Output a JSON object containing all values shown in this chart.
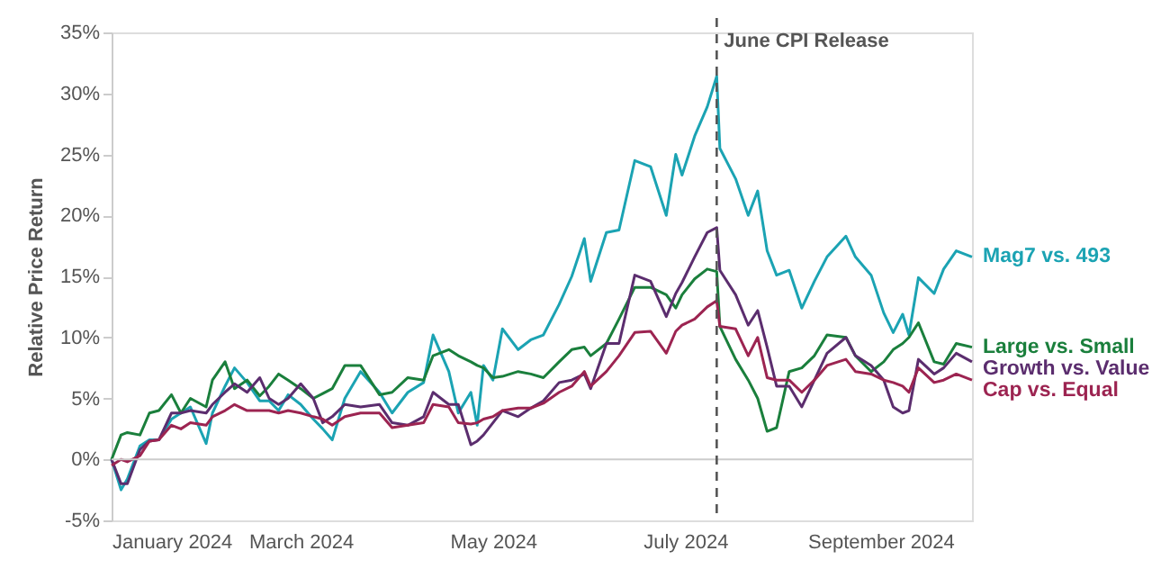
{
  "chart_data": {
    "type": "line",
    "ylabel": "Relative Price Return",
    "x": [
      "2024-01-01",
      "2024-01-04",
      "2024-01-06",
      "2024-01-10",
      "2024-01-13",
      "2024-01-16",
      "2024-01-20",
      "2024-01-23",
      "2024-01-26",
      "2024-01-31",
      "2024-02-02",
      "2024-02-06",
      "2024-02-09",
      "2024-02-13",
      "2024-02-17",
      "2024-02-20",
      "2024-02-23",
      "2024-02-26",
      "2024-03-01",
      "2024-03-05",
      "2024-03-08",
      "2024-03-11",
      "2024-03-15",
      "2024-03-20",
      "2024-03-26",
      "2024-03-30",
      "2024-04-04",
      "2024-04-09",
      "2024-04-12",
      "2024-04-17",
      "2024-04-20",
      "2024-04-24",
      "2024-04-26",
      "2024-04-28",
      "2024-05-01",
      "2024-05-04",
      "2024-05-09",
      "2024-05-13",
      "2024-05-17",
      "2024-05-22",
      "2024-05-26",
      "2024-05-30",
      "2024-06-01",
      "2024-06-06",
      "2024-06-10",
      "2024-06-15",
      "2024-06-20",
      "2024-06-25",
      "2024-06-28",
      "2024-06-30",
      "2024-07-04",
      "2024-07-08",
      "2024-07-11",
      "2024-07-12",
      "2024-07-17",
      "2024-07-21",
      "2024-07-24",
      "2024-07-27",
      "2024-07-30",
      "2024-08-03",
      "2024-08-07",
      "2024-08-11",
      "2024-08-15",
      "2024-08-21",
      "2024-08-24",
      "2024-08-29",
      "2024-09-02",
      "2024-09-05",
      "2024-09-08",
      "2024-09-10",
      "2024-09-13",
      "2024-09-18",
      "2024-09-21",
      "2024-09-25",
      "2024-09-30"
    ],
    "series": [
      {
        "name": "Mag7 vs. 493",
        "color": "#1ba3b3",
        "values": [
          0,
          -2.5,
          -1.6,
          1.1,
          1.6,
          1.6,
          3.3,
          3.8,
          4.3,
          1.3,
          3.8,
          6,
          7.5,
          6.3,
          4.8,
          4.8,
          4,
          5.3,
          4.5,
          3.3,
          2.5,
          1.6,
          5.0,
          7.2,
          5.5,
          3.8,
          5.5,
          6.3,
          10.2,
          7.2,
          3.8,
          5.5,
          2.8,
          7.7,
          6.5,
          10.7,
          9.0,
          9.8,
          10.2,
          12.7,
          15,
          18.1,
          14.6,
          18.6,
          18.8,
          24.5,
          24,
          20,
          25,
          23.3,
          26.5,
          28.9,
          31.4,
          25.5,
          23,
          20,
          22,
          17.1,
          15.1,
          15.5,
          12.4,
          14.6,
          16.6,
          18.3,
          16.6,
          15.1,
          12,
          10.4,
          11.9,
          10.2,
          14.9,
          13.6,
          15.6,
          17.1,
          16.6
        ]
      },
      {
        "name": "Large vs. Small",
        "color": "#1a7f3c",
        "values": [
          0,
          2,
          2.2,
          2,
          3.8,
          4,
          5.3,
          3.8,
          5,
          4.3,
          6.5,
          8,
          5.8,
          6.5,
          5.2,
          6,
          7,
          6.5,
          5.8,
          5,
          5.4,
          5.8,
          7.7,
          7.7,
          5.3,
          5.5,
          6.7,
          6.5,
          8.5,
          9,
          8.5,
          8,
          7.7,
          7.5,
          6.7,
          6.8,
          7.2,
          7,
          6.7,
          8,
          9,
          9.2,
          8.5,
          9.5,
          11.5,
          14.1,
          14.1,
          13.5,
          12.4,
          13.5,
          14.8,
          15.6,
          15.4,
          10.9,
          8.2,
          6.5,
          5,
          2.3,
          2.6,
          7.2,
          7.5,
          8.5,
          10.2,
          10,
          8.5,
          7.2,
          8,
          9,
          9.5,
          10,
          11.2,
          8,
          7.8,
          9.5,
          9.2
        ]
      },
      {
        "name": "Growth vs. Value",
        "color": "#5b2d6e",
        "values": [
          0,
          -2,
          -2,
          0.8,
          1.5,
          1.6,
          3.8,
          3.8,
          4,
          3.8,
          4.5,
          5.5,
          6.2,
          5.5,
          6.7,
          5,
          4.5,
          5,
          6.2,
          5,
          3,
          3.5,
          4.5,
          4.3,
          4.5,
          3,
          2.8,
          3.5,
          5.5,
          4.5,
          4.5,
          1.2,
          1.5,
          2,
          3,
          4,
          3.5,
          4.2,
          4.8,
          6.3,
          6.5,
          7,
          5.8,
          9.5,
          9.5,
          15.1,
          14.6,
          11.7,
          13.6,
          14.5,
          16.6,
          18.6,
          19,
          15.5,
          13.5,
          11,
          12.2,
          9.2,
          6,
          6,
          4.3,
          6.5,
          8.7,
          10,
          8.5,
          7.7,
          6.5,
          4.3,
          3.8,
          4,
          8.2,
          7,
          7.5,
          8.7,
          8
        ]
      },
      {
        "name": "Cap vs. Equal",
        "color": "#9c2451",
        "values": [
          -0.5,
          0,
          -0.2,
          0.3,
          1.5,
          1.6,
          2.8,
          2.5,
          3,
          2.8,
          3.5,
          4,
          4.5,
          4,
          4,
          4,
          3.8,
          4,
          3.8,
          3.5,
          3.3,
          2.8,
          3.5,
          3.8,
          3.8,
          2.6,
          2.8,
          3,
          4.5,
          4.3,
          3,
          2.9,
          3,
          3.3,
          3.5,
          4,
          4.2,
          4.2,
          4.6,
          5.5,
          6,
          7.2,
          6,
          7.2,
          8.5,
          10.4,
          10.5,
          8.7,
          10.5,
          11,
          11.5,
          12.5,
          13,
          10.9,
          10.7,
          8.5,
          10,
          6.7,
          6.5,
          6.5,
          5.5,
          6.5,
          7.7,
          8.2,
          7.2,
          7,
          6.5,
          6.3,
          6,
          5.5,
          7.5,
          6.3,
          6.5,
          7,
          6.5
        ]
      }
    ],
    "xlim": [
      "2024-01-01",
      "2024-09-30"
    ],
    "xticks": [
      {
        "value": "2024-01-01",
        "label": "January 2024"
      },
      {
        "value": "2024-03-01",
        "label": "March 2024"
      },
      {
        "value": "2024-05-01",
        "label": "May 2024"
      },
      {
        "value": "2024-07-01",
        "label": "July 2024"
      },
      {
        "value": "2024-09-01",
        "label": "September 2024"
      }
    ],
    "ylim": [
      -5,
      35
    ],
    "yticks": [
      {
        "value": -5,
        "label": "-5%"
      },
      {
        "value": 0,
        "label": "0%"
      },
      {
        "value": 5,
        "label": "5%"
      },
      {
        "value": 10,
        "label": "10%"
      },
      {
        "value": 15,
        "label": "15%"
      },
      {
        "value": 20,
        "label": "20%"
      },
      {
        "value": 25,
        "label": "25%"
      },
      {
        "value": 30,
        "label": "30%"
      },
      {
        "value": 35,
        "label": "35%"
      }
    ],
    "ref_lines": [
      {
        "axis": "x",
        "value": "2024-07-11",
        "label": "June CPI Release",
        "color": "#555555",
        "line_style": "dashed"
      }
    ],
    "marker": "none",
    "line_style": "solid"
  }
}
